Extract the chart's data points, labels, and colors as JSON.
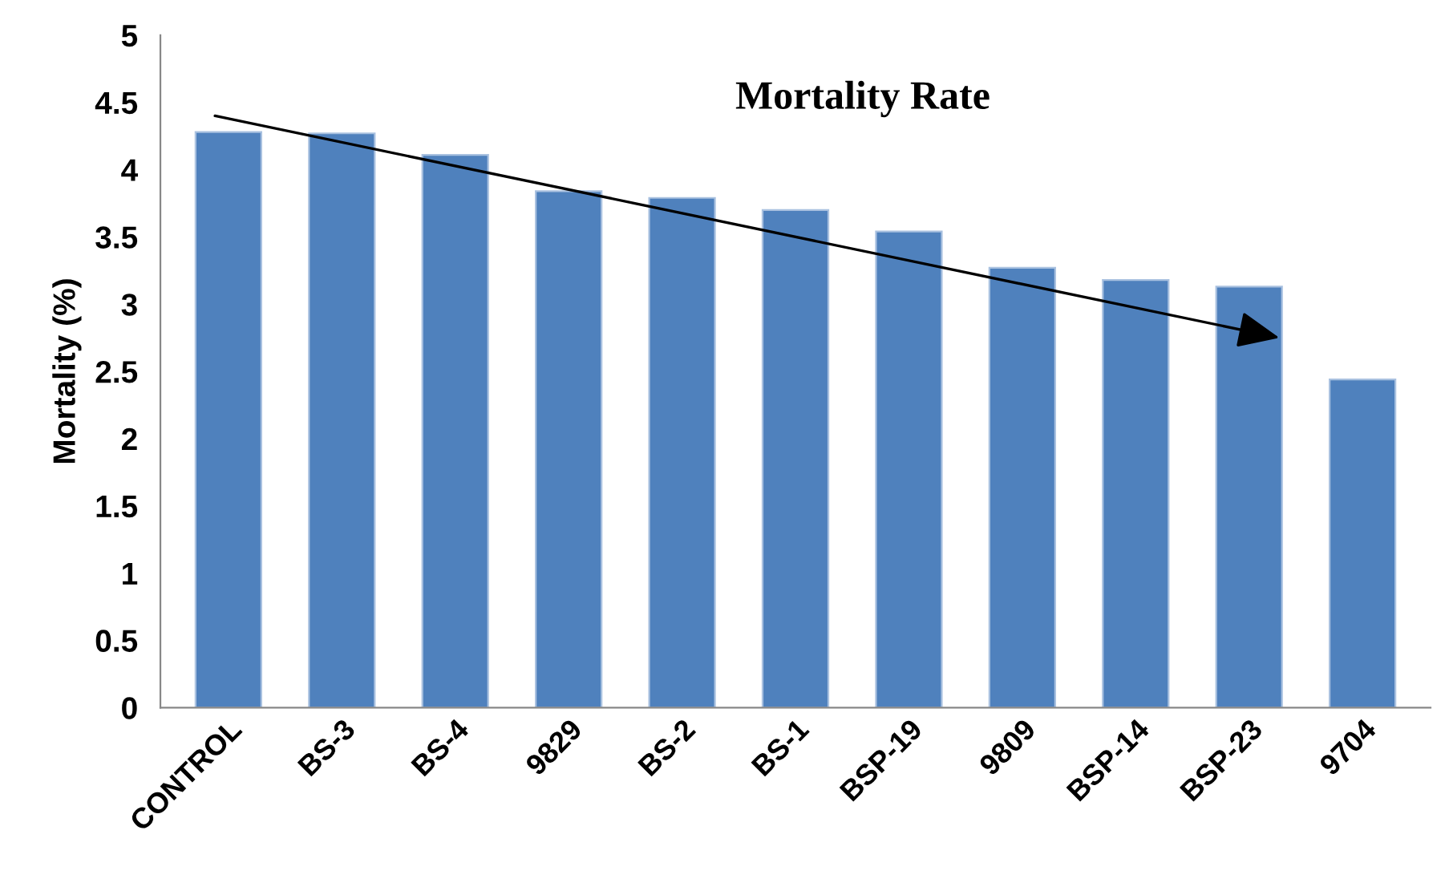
{
  "chart_data": {
    "type": "bar",
    "title": "Mortality Rate",
    "ylabel": "Mortality (%)",
    "categories": [
      "CONTROL",
      "BS-3",
      "BS-4",
      "9829",
      "BS-2",
      "BS-1",
      "BSP-19",
      "9809",
      "BSP-14",
      "BSP-23",
      "9704"
    ],
    "values": [
      4.28,
      4.27,
      4.11,
      3.84,
      3.79,
      3.7,
      3.54,
      3.27,
      3.18,
      3.13,
      2.44
    ],
    "color": "#4f81bd",
    "ylim": [
      0,
      5
    ],
    "yticks": [
      0,
      0.5,
      1,
      1.5,
      2,
      2.5,
      3,
      3.5,
      4,
      4.5,
      5
    ],
    "grid": false,
    "legend": false
  }
}
